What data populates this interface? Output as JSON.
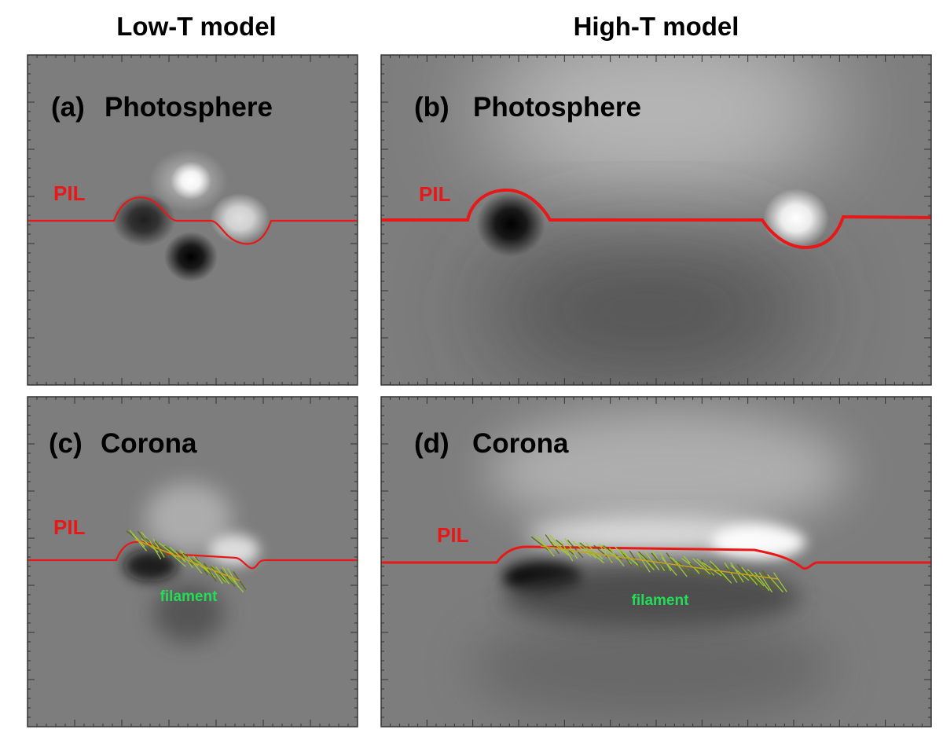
{
  "columns": {
    "left_title": "Low-T model",
    "right_title": "High-T model"
  },
  "panels": {
    "a": {
      "label": "(a)",
      "title": "Photosphere",
      "pil": "PIL"
    },
    "b": {
      "label": "(b)",
      "title": "Photosphere",
      "pil": "PIL"
    },
    "c": {
      "label": "(c)",
      "title": "Corona",
      "pil": "PIL",
      "filament": "filament"
    },
    "d": {
      "label": "(d)",
      "title": "Corona",
      "pil": "PIL",
      "filament": "filament"
    }
  },
  "colors": {
    "background_gray": "#7d7d7d",
    "pil_line": "#e81818",
    "filament_green": "#22dd55",
    "filament_fiber": "#9ccc33"
  }
}
